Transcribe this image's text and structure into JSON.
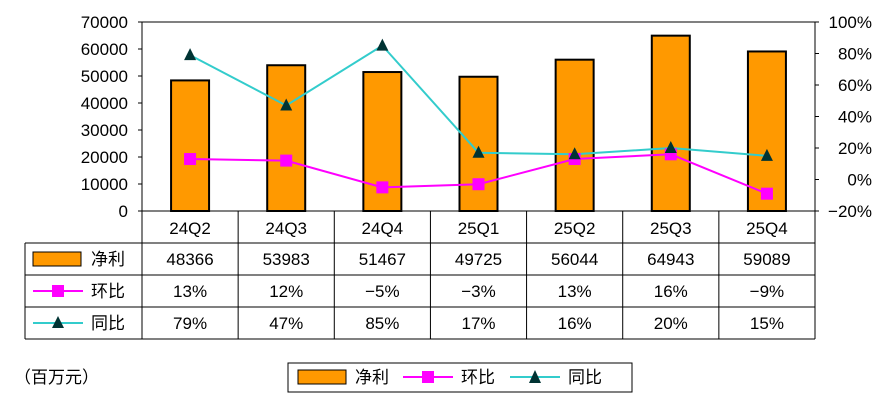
{
  "chart_data": {
    "type": "bar",
    "categories": [
      "24Q2",
      "24Q3",
      "24Q4",
      "25Q1",
      "25Q2",
      "25Q3",
      "25Q4"
    ],
    "series": [
      {
        "name": "净利",
        "kind": "bar",
        "axis": "left",
        "values": [
          48366,
          53983,
          51467,
          49725,
          56044,
          64943,
          59089
        ],
        "labels": [
          "48366",
          "53983",
          "51467",
          "49725",
          "56044",
          "64943",
          "59089"
        ]
      },
      {
        "name": "环比",
        "kind": "line",
        "axis": "right",
        "values": [
          13,
          12,
          -5,
          -3,
          13,
          16,
          -9
        ],
        "labels": [
          "13%",
          "12%",
          "−5%",
          "−3%",
          "13%",
          "16%",
          "−9%"
        ]
      },
      {
        "name": "同比",
        "kind": "line",
        "axis": "right",
        "values": [
          79,
          47,
          85,
          17,
          16,
          20,
          15
        ],
        "labels": [
          "79%",
          "47%",
          "85%",
          "17%",
          "16%",
          "20%",
          "15%"
        ]
      }
    ],
    "y_left": {
      "min": 0,
      "max": 70000,
      "ticks": [
        "0",
        "10000",
        "20000",
        "30000",
        "40000",
        "50000",
        "60000",
        "70000"
      ]
    },
    "y_right": {
      "min": -20,
      "max": 100,
      "ticks": [
        "−20%",
        "0%",
        "20%",
        "40%",
        "60%",
        "80%",
        "100%"
      ]
    },
    "unit_note": "（百万元）",
    "legend": [
      "净利",
      "环比",
      "同比"
    ],
    "legend_position": "bottom",
    "data_table": true,
    "grid": false
  },
  "colors": {
    "bar": "#FF9900",
    "qoq": "#FF00FF",
    "yoy": "#33CCCC",
    "yoy_marker": "#003333"
  }
}
